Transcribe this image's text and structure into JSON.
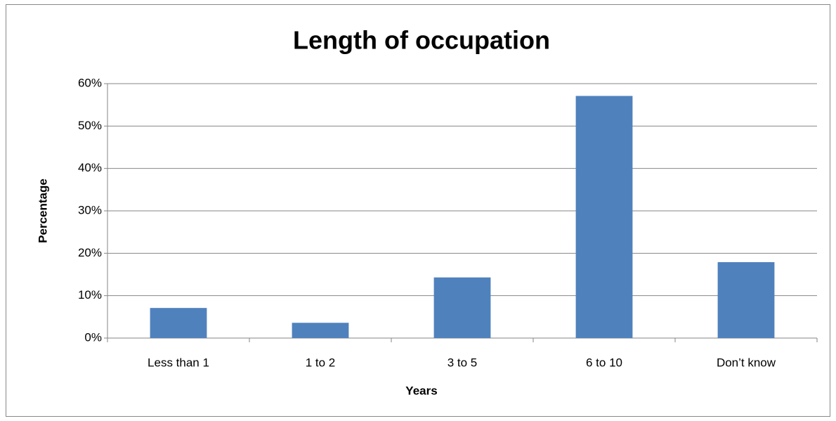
{
  "chart_data": {
    "type": "bar",
    "title": "Length of occupation",
    "x_label": "Years",
    "y_label": "Percentage",
    "categories": [
      "Less than 1",
      "1 to 2",
      "3 to 5",
      "6 to 10",
      "Don’t know"
    ],
    "values": [
      7.1,
      3.6,
      14.3,
      57.1,
      17.9
    ],
    "color": "#4f81bd",
    "ylim": [
      0,
      60
    ],
    "yticks": [
      {
        "value": 0,
        "label": "0%"
      },
      {
        "value": 10,
        "label": "10%"
      },
      {
        "value": 20,
        "label": "20%"
      },
      {
        "value": 30,
        "label": "30%"
      },
      {
        "value": 40,
        "label": "40%"
      },
      {
        "value": 50,
        "label": "50%"
      },
      {
        "value": 60,
        "label": "60%"
      }
    ],
    "grid": true
  }
}
